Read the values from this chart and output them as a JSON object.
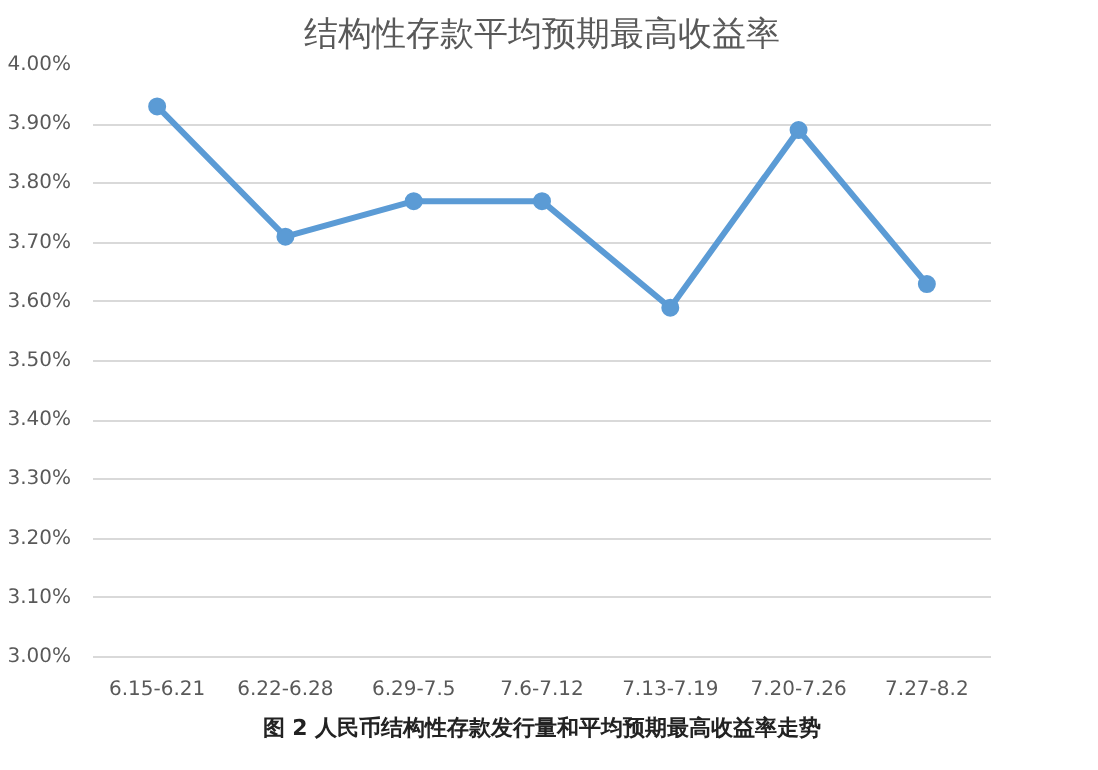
{
  "chart_data": {
    "type": "line",
    "title": "结构性存款平均预期最高收益率",
    "categories": [
      "6.15-6.21",
      "6.22-6.28",
      "6.29-7.5",
      "7.6-7.12",
      "7.13-7.19",
      "7.20-7.26",
      "7.27-8.2"
    ],
    "series": [
      {
        "color": "#5b9bd5",
        "values": [
          3.93,
          3.71,
          3.77,
          3.77,
          3.59,
          3.89,
          3.63
        ]
      }
    ],
    "ylim": [
      3.0,
      4.0
    ],
    "yticks": [
      {
        "value": 3.0,
        "label": "3.00%"
      },
      {
        "value": 3.1,
        "label": "3.10%"
      },
      {
        "value": 3.2,
        "label": "3.20%"
      },
      {
        "value": 3.3,
        "label": "3.30%"
      },
      {
        "value": 3.4,
        "label": "3.40%"
      },
      {
        "value": 3.5,
        "label": "3.50%"
      },
      {
        "value": 3.6,
        "label": "3.60%"
      },
      {
        "value": 3.7,
        "label": "3.70%"
      },
      {
        "value": 3.8,
        "label": "3.80%"
      },
      {
        "value": 3.9,
        "label": "3.90%"
      },
      {
        "value": 4.0,
        "label": "4.00%"
      }
    ],
    "grid": "y",
    "marker": "circle",
    "line_style": "solid",
    "annotations": [
      "图 2 人民币结构性存款发行量和平均预期最高收益率走势"
    ]
  }
}
